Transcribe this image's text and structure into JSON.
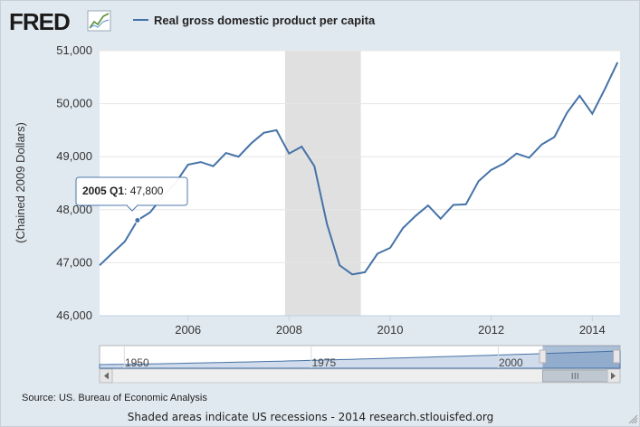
{
  "header": {
    "logo_text": "FRED",
    "legend_label": "Real gross domestic product per capita"
  },
  "colors": {
    "series": "#4572a7",
    "recession": "#e0e0e0",
    "background": "#e1e9f0",
    "plot": "#ffffff"
  },
  "chart_data": {
    "type": "line",
    "title": "",
    "ylabel": "(Chained 2009 Dollars)",
    "xlabel": "",
    "xlim": [
      2004.25,
      2014.55
    ],
    "ylim": [
      46000,
      51000
    ],
    "yticks": [
      46000,
      47000,
      48000,
      49000,
      50000,
      51000
    ],
    "ytick_labels": [
      "46,000",
      "47,000",
      "48,000",
      "49,000",
      "50,000",
      "51,000"
    ],
    "xticks": [
      2006,
      2008,
      2010,
      2012,
      2014
    ],
    "xtick_labels": [
      "2006",
      "2008",
      "2010",
      "2012",
      "2014"
    ],
    "recession": [
      2007.92,
      2009.42
    ],
    "series": [
      {
        "name": "Real gross domestic product per capita",
        "x": [
          2004.25,
          2004.5,
          2004.75,
          2005.0,
          2005.25,
          2005.5,
          2005.75,
          2006.0,
          2006.25,
          2006.5,
          2006.75,
          2007.0,
          2007.25,
          2007.5,
          2007.75,
          2008.0,
          2008.25,
          2008.5,
          2008.75,
          2009.0,
          2009.25,
          2009.5,
          2009.75,
          2010.0,
          2010.25,
          2010.5,
          2010.75,
          2011.0,
          2011.25,
          2011.5,
          2011.75,
          2012.0,
          2012.25,
          2012.5,
          2012.75,
          2013.0,
          2013.25,
          2013.5,
          2013.75,
          2014.0,
          2014.25,
          2014.5
        ],
        "values": [
          46950,
          47180,
          47400,
          47800,
          47950,
          48250,
          48500,
          48850,
          48900,
          48820,
          49070,
          49000,
          49250,
          49450,
          49500,
          49060,
          49190,
          48820,
          47730,
          46950,
          46780,
          46820,
          47170,
          47280,
          47650,
          47880,
          48080,
          47830,
          48090,
          48100,
          48540,
          48750,
          48870,
          49060,
          48980,
          49230,
          49370,
          49830,
          50150,
          49810,
          50280,
          50780
        ]
      }
    ],
    "tooltip": {
      "label": "2005 Q1",
      "value": "47,800",
      "x": 2005.0
    },
    "navigator": {
      "tick_labels": [
        "1950",
        "1975",
        "2000"
      ],
      "tick_years": [
        1950,
        1975,
        2000
      ],
      "range_years": [
        1945,
        2014.6
      ],
      "selected_years": [
        2004.25,
        2014.55
      ]
    }
  },
  "footer": {
    "source": "Source: US. Bureau of Economic Analysis",
    "note": "Shaded areas indicate US recessions - 2014 research.stlouisfed.org"
  }
}
